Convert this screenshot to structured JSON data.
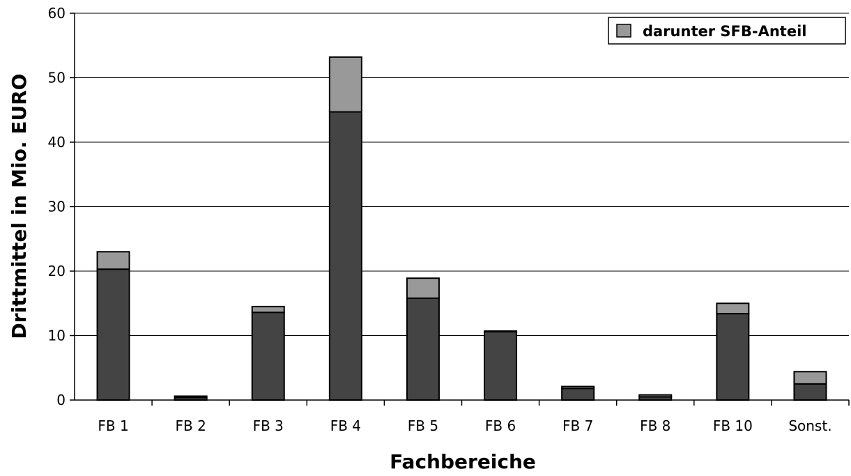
{
  "chart_data": {
    "type": "bar",
    "stacked": true,
    "categories": [
      "FB 1",
      "FB 2",
      "FB 3",
      "FB 4",
      "FB 5",
      "FB 6",
      "FB 7",
      "FB 8",
      "FB 10",
      "Sonst."
    ],
    "series": [
      {
        "name": "",
        "color": "#444444",
        "values": [
          20.3,
          0.4,
          13.6,
          44.7,
          15.8,
          10.6,
          1.8,
          0.5,
          13.4,
          2.5
        ]
      },
      {
        "name": "darunter SFB-Anteil",
        "color": "#999999",
        "values": [
          2.7,
          0.2,
          0.9,
          8.5,
          3.1,
          0.1,
          0.3,
          0.3,
          1.6,
          1.9
        ]
      }
    ],
    "xlabel": "Fachbereiche",
    "ylabel": "Drittmittel in Mio. EURO",
    "ylim": [
      0,
      60
    ],
    "yticks": [
      0,
      10,
      20,
      30,
      40,
      50,
      60
    ],
    "grid": true,
    "legend_position": "top-right"
  }
}
